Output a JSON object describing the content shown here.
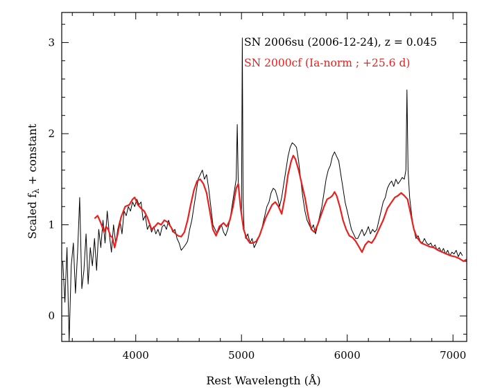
{
  "chart_data": {
    "type": "line",
    "xlabel": "Rest Wavelength (Å)",
    "ylabel_main": "Scaled f",
    "ylabel_sub": "λ",
    "ylabel_tail": " + constant",
    "xlim": [
      3300,
      7130
    ],
    "ylim": [
      -0.28,
      3.33
    ],
    "xticks": [
      4000,
      5000,
      6000,
      7000
    ],
    "xtick_labels": [
      "4000",
      "5000",
      "6000",
      "7000"
    ],
    "yticks": [
      0,
      1,
      2,
      3
    ],
    "ytick_labels": [
      "0",
      "1",
      "2",
      "3"
    ],
    "grid": false,
    "legend_position": "top-right",
    "series": [
      {
        "name": "SN 2006su (2006-12-24), z = 0.045",
        "color": "#000000",
        "points": [
          [
            3310,
            0.6
          ],
          [
            3330,
            0.15
          ],
          [
            3350,
            0.75
          ],
          [
            3370,
            -0.28
          ],
          [
            3390,
            0.55
          ],
          [
            3410,
            0.8
          ],
          [
            3430,
            0.25
          ],
          [
            3450,
            0.7
          ],
          [
            3470,
            1.3
          ],
          [
            3490,
            0.3
          ],
          [
            3510,
            0.5
          ],
          [
            3530,
            0.9
          ],
          [
            3550,
            0.35
          ],
          [
            3570,
            0.75
          ],
          [
            3590,
            0.55
          ],
          [
            3610,
            0.85
          ],
          [
            3630,
            0.5
          ],
          [
            3650,
            0.95
          ],
          [
            3670,
            0.75
          ],
          [
            3690,
            1.05
          ],
          [
            3710,
            0.8
          ],
          [
            3730,
            1.15
          ],
          [
            3750,
            0.9
          ],
          [
            3770,
            0.7
          ],
          [
            3790,
            1.0
          ],
          [
            3810,
            0.8
          ],
          [
            3830,
            0.95
          ],
          [
            3850,
            1.05
          ],
          [
            3870,
            0.9
          ],
          [
            3890,
            1.15
          ],
          [
            3910,
            1.1
          ],
          [
            3930,
            1.2
          ],
          [
            3950,
            1.15
          ],
          [
            3970,
            1.25
          ],
          [
            3990,
            1.2
          ],
          [
            4010,
            1.28
          ],
          [
            4030,
            1.22
          ],
          [
            4050,
            1.25
          ],
          [
            4070,
            1.05
          ],
          [
            4090,
            1.1
          ],
          [
            4110,
            0.95
          ],
          [
            4130,
            1.0
          ],
          [
            4150,
            0.92
          ],
          [
            4170,
            0.98
          ],
          [
            4190,
            0.9
          ],
          [
            4210,
            0.95
          ],
          [
            4230,
            0.88
          ],
          [
            4250,
            0.98
          ],
          [
            4270,
            1.0
          ],
          [
            4290,
            0.95
          ],
          [
            4310,
            1.05
          ],
          [
            4330,
            0.98
          ],
          [
            4350,
            0.92
          ],
          [
            4370,
            0.95
          ],
          [
            4390,
            0.85
          ],
          [
            4410,
            0.8
          ],
          [
            4430,
            0.72
          ],
          [
            4450,
            0.75
          ],
          [
            4470,
            0.78
          ],
          [
            4490,
            0.82
          ],
          [
            4510,
            0.95
          ],
          [
            4530,
            1.05
          ],
          [
            4550,
            1.2
          ],
          [
            4570,
            1.35
          ],
          [
            4590,
            1.5
          ],
          [
            4610,
            1.55
          ],
          [
            4630,
            1.6
          ],
          [
            4650,
            1.5
          ],
          [
            4670,
            1.55
          ],
          [
            4690,
            1.4
          ],
          [
            4710,
            1.2
          ],
          [
            4730,
            1.0
          ],
          [
            4750,
            0.95
          ],
          [
            4770,
            0.9
          ],
          [
            4790,
            0.95
          ],
          [
            4810,
            1.0
          ],
          [
            4830,
            0.92
          ],
          [
            4850,
            0.88
          ],
          [
            4870,
            0.95
          ],
          [
            4890,
            1.05
          ],
          [
            4910,
            1.2
          ],
          [
            4930,
            1.35
          ],
          [
            4950,
            1.5
          ],
          [
            4960,
            2.1
          ],
          [
            4970,
            1.45
          ],
          [
            4980,
            1.3
          ],
          [
            4990,
            1.2
          ],
          [
            5000,
            1.1
          ],
          [
            5008,
            3.05
          ],
          [
            5015,
            1.3
          ],
          [
            5025,
            0.95
          ],
          [
            5040,
            0.85
          ],
          [
            5060,
            0.9
          ],
          [
            5080,
            0.8
          ],
          [
            5100,
            0.85
          ],
          [
            5120,
            0.75
          ],
          [
            5140,
            0.8
          ],
          [
            5160,
            0.85
          ],
          [
            5180,
            0.9
          ],
          [
            5200,
            1.0
          ],
          [
            5220,
            1.1
          ],
          [
            5240,
            1.2
          ],
          [
            5260,
            1.25
          ],
          [
            5280,
            1.35
          ],
          [
            5300,
            1.4
          ],
          [
            5320,
            1.38
          ],
          [
            5340,
            1.3
          ],
          [
            5360,
            1.2
          ],
          [
            5380,
            1.3
          ],
          [
            5400,
            1.45
          ],
          [
            5420,
            1.6
          ],
          [
            5440,
            1.75
          ],
          [
            5460,
            1.85
          ],
          [
            5480,
            1.9
          ],
          [
            5500,
            1.88
          ],
          [
            5520,
            1.85
          ],
          [
            5540,
            1.7
          ],
          [
            5560,
            1.5
          ],
          [
            5580,
            1.3
          ],
          [
            5600,
            1.15
          ],
          [
            5620,
            1.05
          ],
          [
            5640,
            1.0
          ],
          [
            5660,
            0.95
          ],
          [
            5680,
            1.0
          ],
          [
            5700,
            0.9
          ],
          [
            5720,
            1.0
          ],
          [
            5740,
            1.1
          ],
          [
            5760,
            1.2
          ],
          [
            5780,
            1.35
          ],
          [
            5800,
            1.5
          ],
          [
            5820,
            1.6
          ],
          [
            5840,
            1.65
          ],
          [
            5860,
            1.75
          ],
          [
            5880,
            1.8
          ],
          [
            5900,
            1.75
          ],
          [
            5920,
            1.7
          ],
          [
            5940,
            1.55
          ],
          [
            5960,
            1.4
          ],
          [
            5980,
            1.25
          ],
          [
            6000,
            1.15
          ],
          [
            6020,
            1.05
          ],
          [
            6040,
            0.95
          ],
          [
            6060,
            0.9
          ],
          [
            6080,
            0.85
          ],
          [
            6100,
            0.85
          ],
          [
            6120,
            0.9
          ],
          [
            6140,
            0.95
          ],
          [
            6160,
            0.88
          ],
          [
            6180,
            0.92
          ],
          [
            6200,
            0.98
          ],
          [
            6220,
            0.9
          ],
          [
            6240,
            0.95
          ],
          [
            6260,
            0.92
          ],
          [
            6280,
            0.95
          ],
          [
            6300,
            1.05
          ],
          [
            6320,
            1.15
          ],
          [
            6340,
            1.25
          ],
          [
            6360,
            1.3
          ],
          [
            6380,
            1.4
          ],
          [
            6400,
            1.45
          ],
          [
            6420,
            1.48
          ],
          [
            6440,
            1.42
          ],
          [
            6460,
            1.5
          ],
          [
            6480,
            1.45
          ],
          [
            6500,
            1.48
          ],
          [
            6520,
            1.52
          ],
          [
            6540,
            1.5
          ],
          [
            6555,
            1.6
          ],
          [
            6565,
            2.48
          ],
          [
            6575,
            1.6
          ],
          [
            6590,
            1.3
          ],
          [
            6610,
            1.1
          ],
          [
            6630,
            0.95
          ],
          [
            6650,
            0.85
          ],
          [
            6670,
            0.88
          ],
          [
            6690,
            0.82
          ],
          [
            6710,
            0.8
          ],
          [
            6730,
            0.85
          ],
          [
            6750,
            0.8
          ],
          [
            6770,
            0.78
          ],
          [
            6790,
            0.8
          ],
          [
            6810,
            0.75
          ],
          [
            6830,
            0.78
          ],
          [
            6850,
            0.72
          ],
          [
            6870,
            0.75
          ],
          [
            6890,
            0.7
          ],
          [
            6910,
            0.74
          ],
          [
            6930,
            0.68
          ],
          [
            6950,
            0.72
          ],
          [
            6970,
            0.66
          ],
          [
            6990,
            0.7
          ],
          [
            7010,
            0.68
          ],
          [
            7030,
            0.72
          ],
          [
            7050,
            0.65
          ],
          [
            7070,
            0.7
          ],
          [
            7090,
            0.66
          ]
        ]
      },
      {
        "name": "SN 2000cf (Ia-norm ; +25.6 d)",
        "color": "#e8201e",
        "points": [
          [
            3610,
            1.07
          ],
          [
            3640,
            1.1
          ],
          [
            3670,
            1.02
          ],
          [
            3700,
            0.92
          ],
          [
            3720,
            0.98
          ],
          [
            3740,
            0.95
          ],
          [
            3760,
            0.88
          ],
          [
            3780,
            0.86
          ],
          [
            3800,
            0.75
          ],
          [
            3830,
            0.9
          ],
          [
            3860,
            1.08
          ],
          [
            3900,
            1.2
          ],
          [
            3940,
            1.22
          ],
          [
            3970,
            1.28
          ],
          [
            3990,
            1.3
          ],
          [
            4020,
            1.22
          ],
          [
            4050,
            1.18
          ],
          [
            4080,
            1.15
          ],
          [
            4110,
            1.08
          ],
          [
            4150,
            0.95
          ],
          [
            4180,
            0.98
          ],
          [
            4210,
            1.02
          ],
          [
            4240,
            1.0
          ],
          [
            4270,
            1.05
          ],
          [
            4300,
            1.03
          ],
          [
            4330,
            0.98
          ],
          [
            4360,
            0.92
          ],
          [
            4400,
            0.88
          ],
          [
            4430,
            0.87
          ],
          [
            4460,
            0.92
          ],
          [
            4490,
            1.05
          ],
          [
            4520,
            1.22
          ],
          [
            4550,
            1.38
          ],
          [
            4580,
            1.48
          ],
          [
            4610,
            1.5
          ],
          [
            4640,
            1.45
          ],
          [
            4670,
            1.35
          ],
          [
            4700,
            1.15
          ],
          [
            4730,
            0.95
          ],
          [
            4760,
            0.88
          ],
          [
            4790,
            0.98
          ],
          [
            4830,
            1.02
          ],
          [
            4860,
            0.98
          ],
          [
            4890,
            1.05
          ],
          [
            4920,
            1.2
          ],
          [
            4950,
            1.4
          ],
          [
            4970,
            1.45
          ],
          [
            4990,
            1.2
          ],
          [
            5020,
            0.95
          ],
          [
            5050,
            0.85
          ],
          [
            5080,
            0.8
          ],
          [
            5110,
            0.8
          ],
          [
            5140,
            0.82
          ],
          [
            5170,
            0.88
          ],
          [
            5200,
            0.98
          ],
          [
            5230,
            1.08
          ],
          [
            5260,
            1.15
          ],
          [
            5290,
            1.22
          ],
          [
            5320,
            1.25
          ],
          [
            5350,
            1.2
          ],
          [
            5380,
            1.12
          ],
          [
            5410,
            1.3
          ],
          [
            5440,
            1.55
          ],
          [
            5470,
            1.7
          ],
          [
            5490,
            1.76
          ],
          [
            5510,
            1.72
          ],
          [
            5540,
            1.6
          ],
          [
            5570,
            1.45
          ],
          [
            5600,
            1.3
          ],
          [
            5630,
            1.1
          ],
          [
            5660,
            0.95
          ],
          [
            5690,
            0.92
          ],
          [
            5720,
            1.0
          ],
          [
            5750,
            1.1
          ],
          [
            5780,
            1.2
          ],
          [
            5810,
            1.28
          ],
          [
            5840,
            1.3
          ],
          [
            5860,
            1.32
          ],
          [
            5880,
            1.36
          ],
          [
            5900,
            1.32
          ],
          [
            5930,
            1.2
          ],
          [
            5960,
            1.05
          ],
          [
            5990,
            0.95
          ],
          [
            6020,
            0.88
          ],
          [
            6050,
            0.86
          ],
          [
            6080,
            0.82
          ],
          [
            6110,
            0.76
          ],
          [
            6140,
            0.7
          ],
          [
            6170,
            0.78
          ],
          [
            6200,
            0.82
          ],
          [
            6230,
            0.8
          ],
          [
            6260,
            0.85
          ],
          [
            6300,
            0.95
          ],
          [
            6340,
            1.05
          ],
          [
            6380,
            1.18
          ],
          [
            6420,
            1.25
          ],
          [
            6450,
            1.3
          ],
          [
            6480,
            1.32
          ],
          [
            6510,
            1.35
          ],
          [
            6540,
            1.32
          ],
          [
            6570,
            1.28
          ],
          [
            6600,
            1.12
          ],
          [
            6630,
            0.95
          ],
          [
            6660,
            0.86
          ],
          [
            6700,
            0.8
          ],
          [
            6740,
            0.78
          ],
          [
            6780,
            0.76
          ],
          [
            6820,
            0.75
          ],
          [
            6860,
            0.72
          ],
          [
            6900,
            0.7
          ],
          [
            6940,
            0.68
          ],
          [
            6980,
            0.66
          ],
          [
            7020,
            0.65
          ],
          [
            7060,
            0.63
          ],
          [
            7100,
            0.6
          ],
          [
            7130,
            0.62
          ]
        ]
      }
    ]
  }
}
